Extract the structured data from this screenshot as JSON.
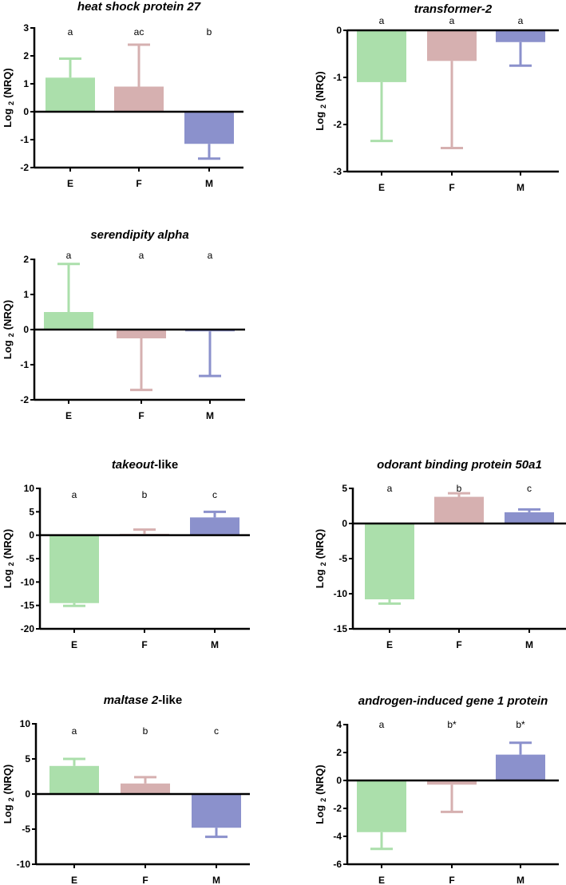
{
  "chart_data": [
    {
      "type": "bar",
      "title_parts": [
        {
          "text": "heat shock protein 27",
          "italic": true
        }
      ],
      "ylabel": {
        "main": "Log",
        "sub": "2",
        "unit": "(NRQ)"
      },
      "categories": [
        "E",
        "F",
        "M"
      ],
      "values": [
        1.22,
        0.9,
        -1.15
      ],
      "error_ends": [
        1.9,
        2.4,
        -1.68
      ],
      "letters": [
        "a",
        "ac",
        "b"
      ],
      "ylim": [
        -2,
        3
      ],
      "yticks": [
        -2,
        -1,
        0,
        1,
        2,
        3
      ]
    },
    {
      "type": "bar",
      "title_parts": [
        {
          "text": "transformer-2",
          "italic": true
        }
      ],
      "ylabel": {
        "main": "Log",
        "sub": "2",
        "unit": "(NRQ)"
      },
      "categories": [
        "E",
        "F",
        "M"
      ],
      "values": [
        -1.1,
        -0.65,
        -0.25
      ],
      "error_ends": [
        -2.35,
        -2.5,
        -0.75
      ],
      "letters": [
        "a",
        "a",
        "a"
      ],
      "ylim": [
        -3,
        0
      ],
      "yticks": [
        -3,
        -2,
        -1,
        0
      ]
    },
    {
      "type": "bar",
      "title_parts": [
        {
          "text": "serendipity alpha",
          "italic": true
        }
      ],
      "ylabel": {
        "main": "Log",
        "sub": "2",
        "unit": "(NRQ)"
      },
      "categories": [
        "E",
        "F",
        "M"
      ],
      "values": [
        0.5,
        -0.25,
        -0.05
      ],
      "error_ends": [
        1.87,
        -1.72,
        -1.32
      ],
      "letters": [
        "a",
        "a",
        "a"
      ],
      "ylim": [
        -2,
        2
      ],
      "yticks": [
        -2,
        -1,
        0,
        1,
        2
      ]
    },
    {
      "type": "bar",
      "title_parts": [
        {
          "text": "takeout",
          "italic": true
        },
        {
          "text": "-like",
          "italic": false
        }
      ],
      "ylabel": {
        "main": "Log",
        "sub": "2",
        "unit": "(NRQ)"
      },
      "categories": [
        "E",
        "F",
        "M"
      ],
      "values": [
        -14.5,
        0.3,
        3.8
      ],
      "error_ends": [
        -15.1,
        1.2,
        5.0
      ],
      "letters": [
        "a",
        "b",
        "c"
      ],
      "ylim": [
        -20,
        10
      ],
      "yticks": [
        -20,
        -15,
        -10,
        -5,
        0,
        5,
        10
      ]
    },
    {
      "type": "bar",
      "title_parts": [
        {
          "text": "odorant binding protein 50a1",
          "italic": true
        }
      ],
      "ylabel": {
        "main": "Log",
        "sub": "2",
        "unit": "(NRQ)"
      },
      "categories": [
        "E",
        "F",
        "M"
      ],
      "values": [
        -10.8,
        3.8,
        1.6
      ],
      "error_ends": [
        -11.4,
        4.3,
        2.0
      ],
      "letters": [
        "a",
        "b",
        "c"
      ],
      "ylim": [
        -15,
        5
      ],
      "yticks": [
        -15,
        -10,
        -5,
        0,
        5
      ]
    },
    {
      "type": "bar",
      "title_parts": [
        {
          "text": "maltase 2",
          "italic": true
        },
        {
          "text": "-like",
          "italic": false
        }
      ],
      "ylabel": {
        "main": "Log",
        "sub": "2",
        "unit": "(NRQ)"
      },
      "categories": [
        "E",
        "F",
        "M"
      ],
      "values": [
        4.0,
        1.5,
        -4.8
      ],
      "error_ends": [
        5.0,
        2.4,
        -6.1
      ],
      "letters": [
        "a",
        "b",
        "c"
      ],
      "ylim": [
        -10,
        10
      ],
      "yticks": [
        -10,
        -5,
        0,
        5,
        10
      ]
    },
    {
      "type": "bar",
      "title_parts": [
        {
          "text": "androgen-induced gene 1 protein",
          "italic": true
        }
      ],
      "ylabel": {
        "main": "Log",
        "sub": "2",
        "unit": "(NRQ)"
      },
      "categories": [
        "E",
        "F",
        "M"
      ],
      "values": [
        -3.7,
        -0.3,
        1.85
      ],
      "error_ends": [
        -4.9,
        -2.25,
        2.7
      ],
      "letters": [
        "a",
        "b*",
        "b*"
      ],
      "ylim": [
        -6,
        4
      ],
      "yticks": [
        -6,
        -4,
        -2,
        0,
        2,
        4
      ]
    }
  ],
  "colors": {
    "E": "#abdfab",
    "F": "#d6b0b0",
    "M": "#8b91cc",
    "axis": "#000000"
  }
}
